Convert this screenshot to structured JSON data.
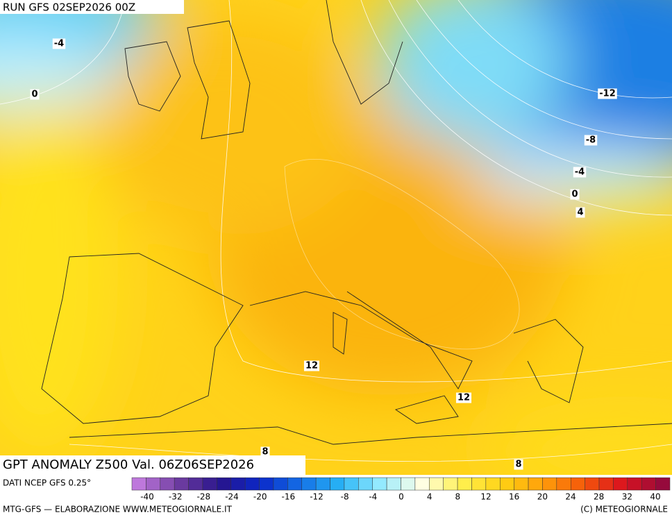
{
  "header": {
    "run": "RUN GFS 02SEP2026 00Z"
  },
  "map": {
    "contour_labels": [
      "-4",
      "0",
      "-12",
      "-8",
      "-4",
      "0",
      "4",
      "12",
      "12",
      "8",
      "8"
    ]
  },
  "footer": {
    "title": "GPT ANOMALY Z500 Val. 06Z06SEP2026",
    "source": "DATI NCEP GFS 0.25°",
    "colorbar_labels": [
      "-40",
      "-32",
      "-28",
      "-24",
      "-20",
      "-16",
      "-12",
      "-8",
      "-4",
      "0",
      "4",
      "8",
      "12",
      "16",
      "20",
      "24",
      "28",
      "32",
      "40"
    ],
    "credit_left": "MTG-GFS — ELABORAZIONE WWW.METEOGIORNALE.IT",
    "credit_right": "(C) METEOGIORNALE"
  }
}
